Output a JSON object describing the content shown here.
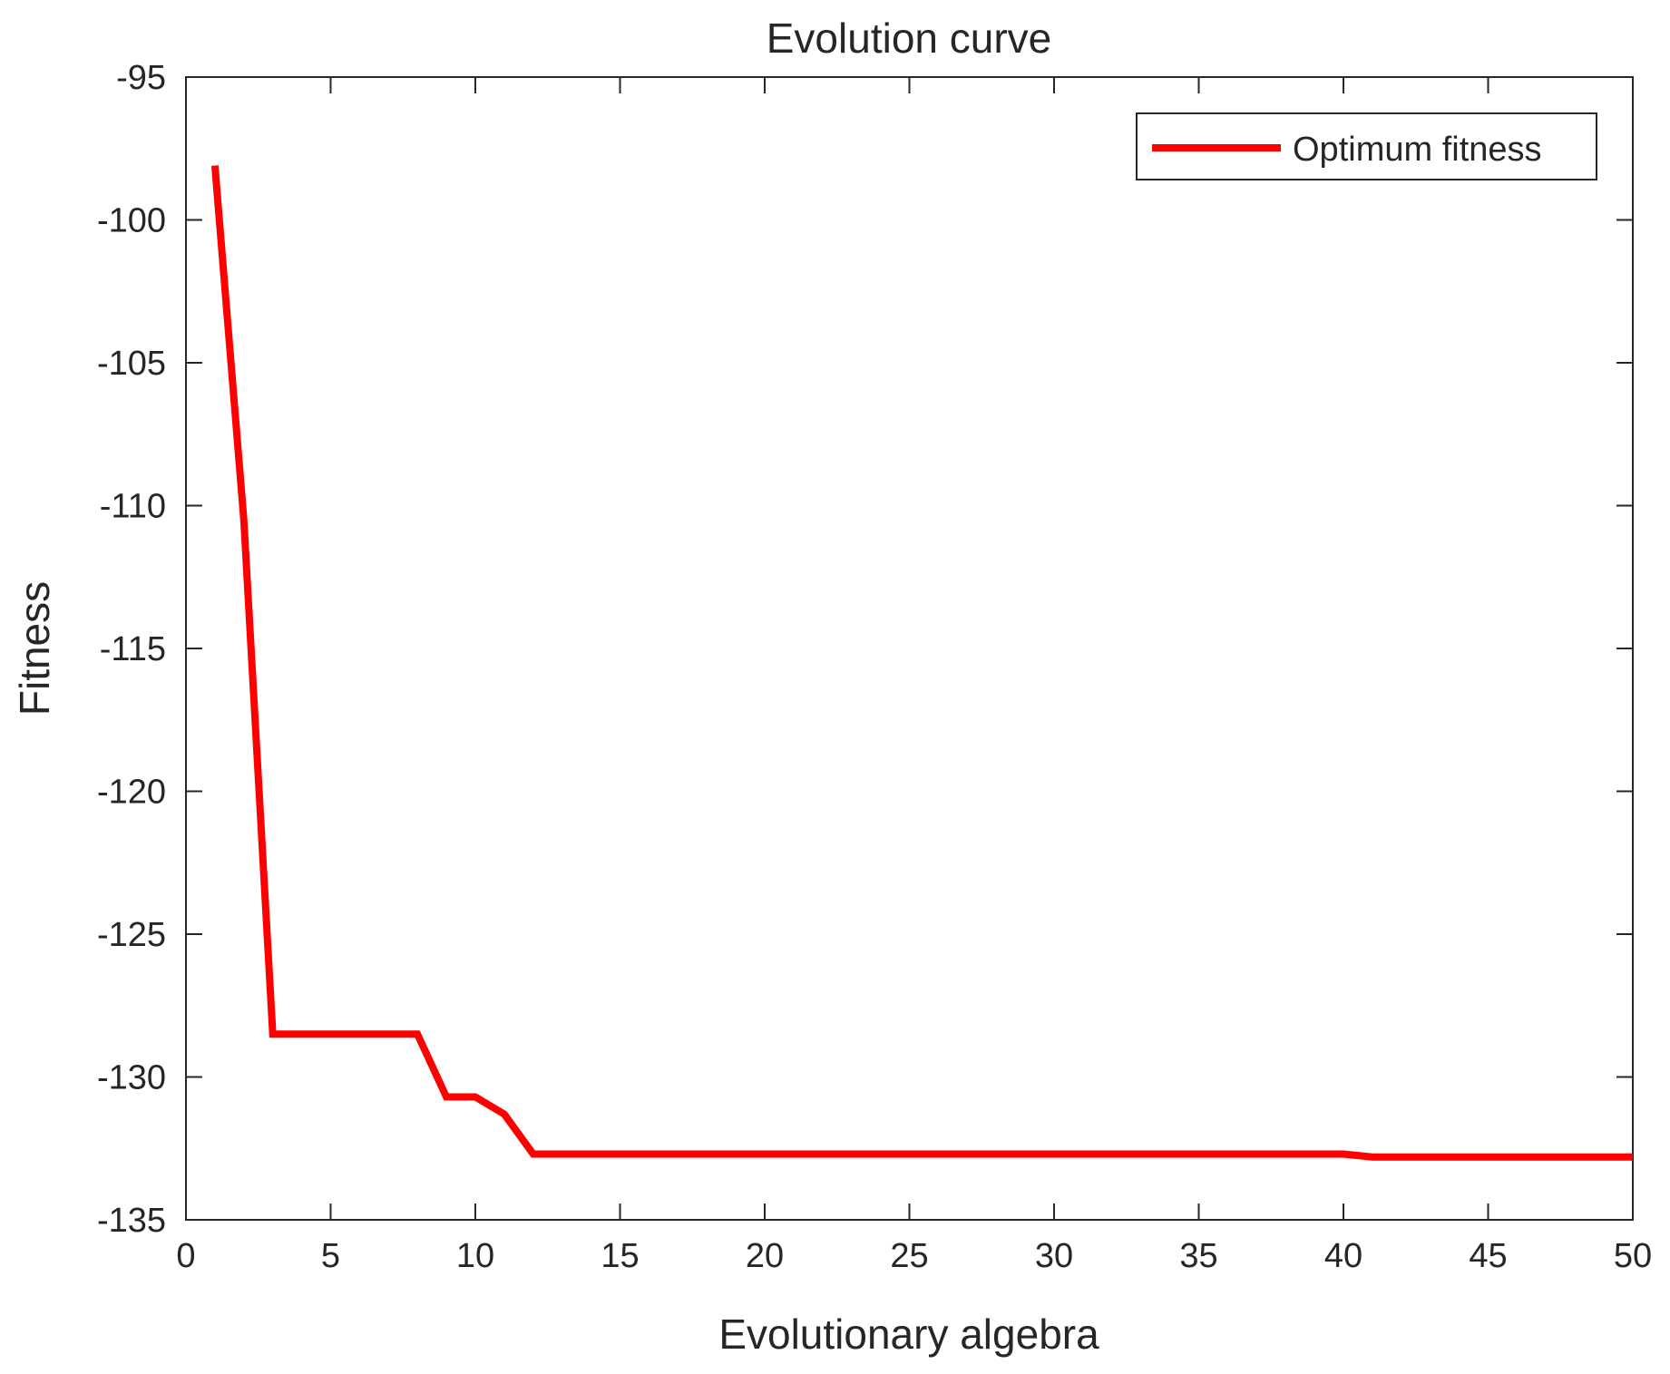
{
  "chart_data": {
    "type": "line",
    "title": "Evolution curve",
    "xlabel": "Evolutionary algebra",
    "ylabel": "Fitness",
    "xlim": [
      0,
      50
    ],
    "ylim": [
      -135,
      -95
    ],
    "xticks": [
      0,
      5,
      10,
      15,
      20,
      25,
      30,
      35,
      40,
      45,
      50
    ],
    "yticks": [
      -95,
      -100,
      -105,
      -110,
      -115,
      -120,
      -125,
      -130,
      -135
    ],
    "grid": false,
    "legend_position": "top-right",
    "series": [
      {
        "name": "Optimum fitness",
        "color": "#ff0000",
        "x": [
          1,
          2,
          3,
          4,
          5,
          6,
          7,
          8,
          9,
          10,
          11,
          12,
          13,
          14,
          15,
          16,
          17,
          18,
          19,
          20,
          21,
          22,
          23,
          24,
          25,
          26,
          27,
          28,
          29,
          30,
          31,
          32,
          33,
          34,
          35,
          36,
          37,
          38,
          39,
          40,
          41,
          42,
          43,
          44,
          45,
          46,
          47,
          48,
          49,
          50
        ],
        "y": [
          -98.1,
          -110.5,
          -128.5,
          -128.5,
          -128.5,
          -128.5,
          -128.5,
          -128.5,
          -130.7,
          -130.7,
          -131.3,
          -132.7,
          -132.7,
          -132.7,
          -132.7,
          -132.7,
          -132.7,
          -132.7,
          -132.7,
          -132.7,
          -132.7,
          -132.7,
          -132.7,
          -132.7,
          -132.7,
          -132.7,
          -132.7,
          -132.7,
          -132.7,
          -132.7,
          -132.7,
          -132.7,
          -132.7,
          -132.7,
          -132.7,
          -132.7,
          -132.7,
          -132.7,
          -132.7,
          -132.7,
          -132.8,
          -132.8,
          -132.8,
          -132.8,
          -132.8,
          -132.8,
          -132.8,
          -132.8,
          -132.8,
          -132.8
        ]
      }
    ]
  }
}
